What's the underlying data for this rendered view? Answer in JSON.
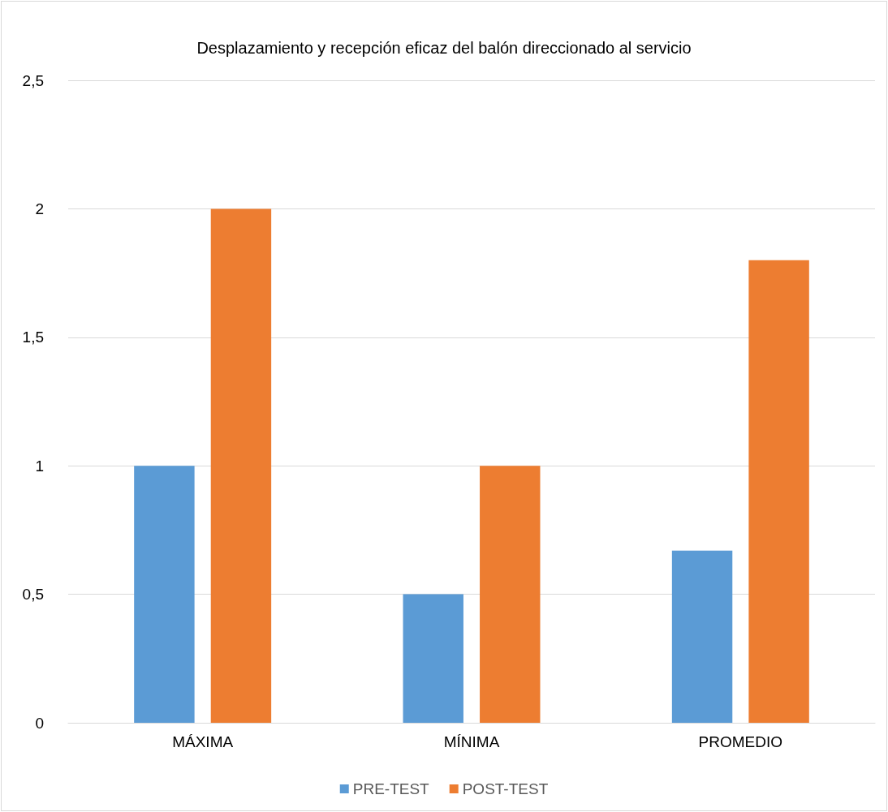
{
  "chart_data": {
    "type": "bar",
    "title": "Desplazamiento y recepción eficaz del balón direccionado al servicio",
    "categories": [
      "MÁXIMA",
      "MÍNIMA",
      "PROMEDIO"
    ],
    "series": [
      {
        "name": "PRE-TEST",
        "color": "#5b9bd5",
        "values": [
          1,
          0.5,
          0.67
        ]
      },
      {
        "name": "POST-TEST",
        "color": "#ed7d31",
        "values": [
          2,
          1,
          1.8
        ]
      }
    ],
    "ylim": [
      0,
      2.5
    ],
    "yticks": [
      0,
      {
        "value": 0.5,
        "label": "0,5"
      },
      1,
      {
        "value": 1.5,
        "label": "1,5"
      },
      2,
      {
        "value": 2.5,
        "label": "2,5"
      }
    ],
    "grid": "y",
    "legend": "bottom"
  }
}
